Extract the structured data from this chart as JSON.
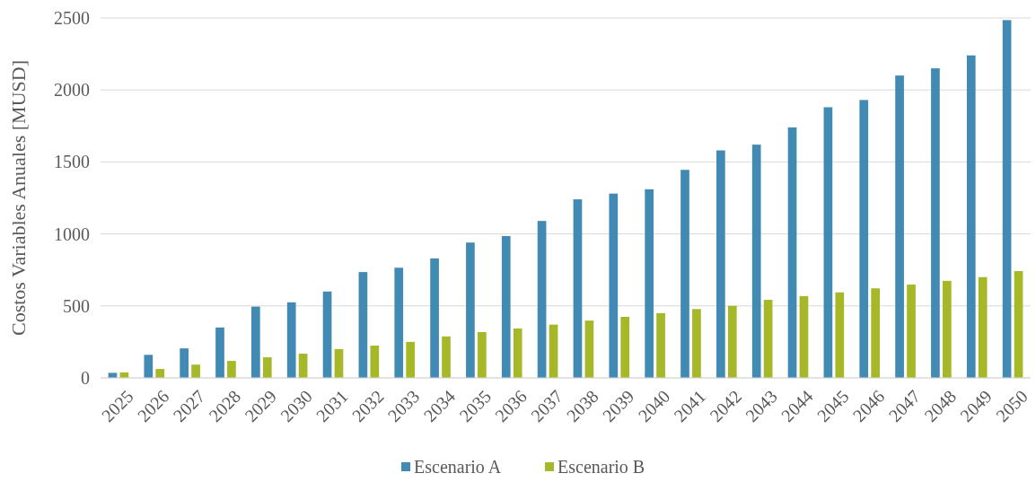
{
  "chart_data": {
    "type": "bar",
    "ylabel": "Costos Variables Anuales [MUSD]",
    "categories": [
      "2025",
      "2026",
      "2027",
      "2028",
      "2029",
      "2030",
      "2031",
      "2032",
      "2033",
      "2034",
      "2035",
      "2036",
      "2037",
      "2038",
      "2039",
      "2040",
      "2041",
      "2042",
      "2043",
      "2044",
      "2045",
      "2046",
      "2047",
      "2048",
      "2049",
      "2050"
    ],
    "series": [
      {
        "name": "Escenario A",
        "color": "#418ab3",
        "values": [
          35,
          160,
          205,
          350,
          495,
          525,
          600,
          735,
          765,
          830,
          940,
          985,
          1090,
          1240,
          1280,
          1310,
          1445,
          1580,
          1620,
          1740,
          1880,
          1930,
          2100,
          2150,
          2240,
          2485
        ]
      },
      {
        "name": "Escenario B",
        "color": "#a6b727",
        "values": [
          38,
          62,
          92,
          118,
          143,
          168,
          200,
          224,
          250,
          288,
          318,
          343,
          370,
          398,
          424,
          450,
          478,
          500,
          542,
          568,
          594,
          622,
          648,
          674,
          700,
          742
        ]
      }
    ],
    "ylim": [
      0,
      2500
    ],
    "yticks": [
      0,
      500,
      1000,
      1500,
      2000,
      2500
    ],
    "grid": "y",
    "legend": "bottom"
  }
}
